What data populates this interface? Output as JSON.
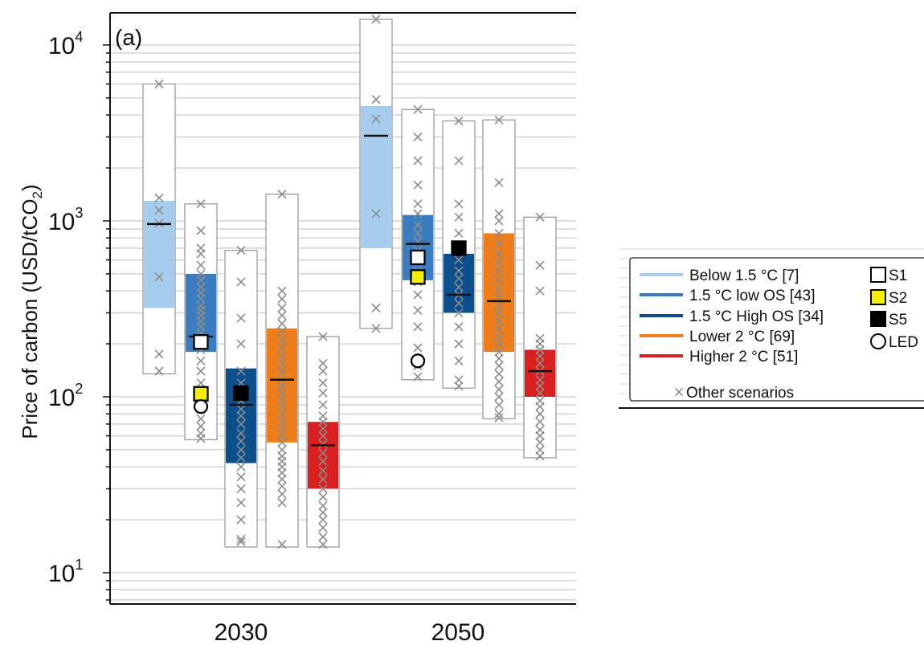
{
  "chart_data": {
    "type": "box",
    "panel_label": "(a)",
    "ylabel": "Price of carbon (USD/tCO2)",
    "yscale": "log",
    "ylim": [
      6,
      15000
    ],
    "y_tick_labels": [
      {
        "value": 10,
        "base": "10",
        "exp": "1"
      },
      {
        "value": 100,
        "base": "10",
        "exp": "2"
      },
      {
        "value": 1000,
        "base": "10",
        "exp": "3"
      },
      {
        "value": 10000,
        "base": "10",
        "exp": "4"
      }
    ],
    "categories": [
      "2030",
      "2050"
    ],
    "grid": true,
    "legend_position": "right",
    "legend": [
      {
        "label": "Below 1.5 °C [7]",
        "kind": "line",
        "color": "#a6cdee"
      },
      {
        "label": "1.5 °C low OS [43]",
        "kind": "line",
        "color": "#3a7cc0"
      },
      {
        "label": "1.5 °C High OS [34]",
        "kind": "line",
        "color": "#0b4f8c"
      },
      {
        "label": "Lower  2 °C [69]",
        "kind": "line",
        "color": "#ef7d1a"
      },
      {
        "label": "Higher  2 °C [51]",
        "kind": "line",
        "color": "#d91f1f"
      },
      {
        "label": "Other scenarios",
        "kind": "cross",
        "color": "#888888"
      },
      {
        "label": "S1",
        "kind": "square",
        "color": "#ffffff"
      },
      {
        "label": "S2",
        "kind": "square",
        "color": "#f7ef00"
      },
      {
        "label": "S5",
        "kind": "square",
        "color": "#000000"
      },
      {
        "label": "LED",
        "kind": "circle",
        "color": "#ffffff"
      }
    ],
    "series": [
      {
        "name": "Below 1.5 °C [7]",
        "color": "#a6cdee"
      },
      {
        "name": "1.5 °C low OS [43]",
        "color": "#3a7cc0"
      },
      {
        "name": "1.5 °C High OS [34]",
        "color": "#0b4f8c"
      },
      {
        "name": "Lower  2 °C [69]",
        "color": "#ef7d1a"
      },
      {
        "name": "Higher  2 °C [51]",
        "color": "#d91f1f"
      }
    ],
    "boxes": [
      {
        "category": "2030",
        "series": 0,
        "min": 135,
        "q1": 320,
        "median": 960,
        "q3": 1300,
        "max": 6000,
        "points": [
          140,
          175,
          480,
          970,
          1150,
          1350,
          6000
        ]
      },
      {
        "category": "2030",
        "series": 1,
        "min": 57,
        "q1": 180,
        "median": 220,
        "q3": 500,
        "max": 1250,
        "points": [
          58,
          62,
          68,
          75,
          85,
          95,
          105,
          120,
          140,
          160,
          185,
          200,
          215,
          230,
          250,
          270,
          290,
          310,
          330,
          360,
          390,
          420,
          460,
          500,
          560,
          650,
          700,
          880,
          1250
        ]
      },
      {
        "category": "2030",
        "series": 2,
        "min": 14,
        "q1": 42,
        "median": 90,
        "q3": 145,
        "max": 680,
        "points": [
          15,
          15.5,
          20,
          25,
          30,
          35,
          40,
          45,
          50,
          56,
          62,
          70,
          78,
          85,
          95,
          105,
          120,
          140,
          200,
          280,
          450,
          680
        ]
      },
      {
        "category": "2030",
        "series": 3,
        "min": 14,
        "q1": 55,
        "median": 125,
        "q3": 245,
        "max": 1420,
        "points": [
          14.5,
          25,
          28,
          31,
          34,
          37,
          40,
          43,
          46,
          50,
          55,
          60,
          66,
          72,
          80,
          88,
          96,
          105,
          115,
          125,
          140,
          155,
          170,
          190,
          210,
          235,
          260,
          290,
          320,
          360,
          400,
          1420
        ]
      },
      {
        "category": "2030",
        "series": 4,
        "min": 14,
        "q1": 30,
        "median": 53,
        "q3": 72,
        "max": 220,
        "points": [
          14.5,
          16,
          18,
          20,
          22,
          24,
          27,
          30,
          34,
          38,
          43,
          48,
          54,
          60,
          66,
          72,
          78,
          90,
          105,
          120,
          140,
          155,
          220
        ]
      },
      {
        "category": "2050",
        "series": 0,
        "min": 245,
        "q1": 700,
        "median": 3050,
        "q3": 4500,
        "max": 14000,
        "points": [
          245,
          320,
          1100,
          3800,
          4900,
          14000
        ]
      },
      {
        "category": "2050",
        "series": 1,
        "min": 125,
        "q1": 460,
        "median": 740,
        "q3": 1080,
        "max": 4300,
        "points": [
          130,
          150,
          190,
          250,
          310,
          380,
          450,
          520,
          600,
          680,
          760,
          850,
          950,
          1100,
          1250,
          1600,
          2200,
          3000,
          4300
        ]
      },
      {
        "category": "2050",
        "series": 2,
        "min": 112,
        "q1": 300,
        "median": 380,
        "q3": 650,
        "max": 3700,
        "points": [
          115,
          125,
          160,
          200,
          250,
          300,
          340,
          380,
          420,
          470,
          520,
          600,
          700,
          850,
          1050,
          1250,
          2200,
          3700
        ]
      },
      {
        "category": "2050",
        "series": 3,
        "min": 75,
        "q1": 180,
        "median": 350,
        "q3": 850,
        "max": 3750,
        "points": [
          76,
          80,
          90,
          100,
          110,
          122,
          135,
          150,
          165,
          180,
          200,
          220,
          245,
          270,
          300,
          330,
          370,
          410,
          460,
          520,
          580,
          650,
          740,
          850,
          1000,
          1100,
          1650,
          3750
        ]
      },
      {
        "category": "2050",
        "series": 4,
        "min": 45,
        "q1": 100,
        "median": 140,
        "q3": 185,
        "max": 1050,
        "points": [
          46,
          50,
          55,
          60,
          65,
          72,
          80,
          88,
          95,
          105,
          115,
          125,
          140,
          155,
          170,
          185,
          200,
          215,
          400,
          560,
          1050
        ]
      }
    ],
    "markers": [
      {
        "label": "S1",
        "kind": "square",
        "box": 1,
        "value": 205,
        "color": "#ffffff"
      },
      {
        "label": "S2",
        "kind": "square",
        "box": 1,
        "value": 104,
        "color": "#f7ef00"
      },
      {
        "label": "LED",
        "kind": "circle",
        "box": 1,
        "value": 88,
        "color": "#ffffff"
      },
      {
        "label": "S5",
        "kind": "square",
        "box": 2,
        "value": 105,
        "color": "#000000"
      },
      {
        "label": "S1",
        "kind": "square",
        "box": 6,
        "value": 620,
        "color": "#ffffff"
      },
      {
        "label": "S2",
        "kind": "square",
        "box": 6,
        "value": 480,
        "color": "#f7ef00"
      },
      {
        "label": "LED",
        "kind": "circle",
        "box": 6,
        "value": 160,
        "color": "#ffffff"
      },
      {
        "label": "S5",
        "kind": "square",
        "box": 7,
        "value": 700,
        "color": "#000000"
      }
    ]
  }
}
